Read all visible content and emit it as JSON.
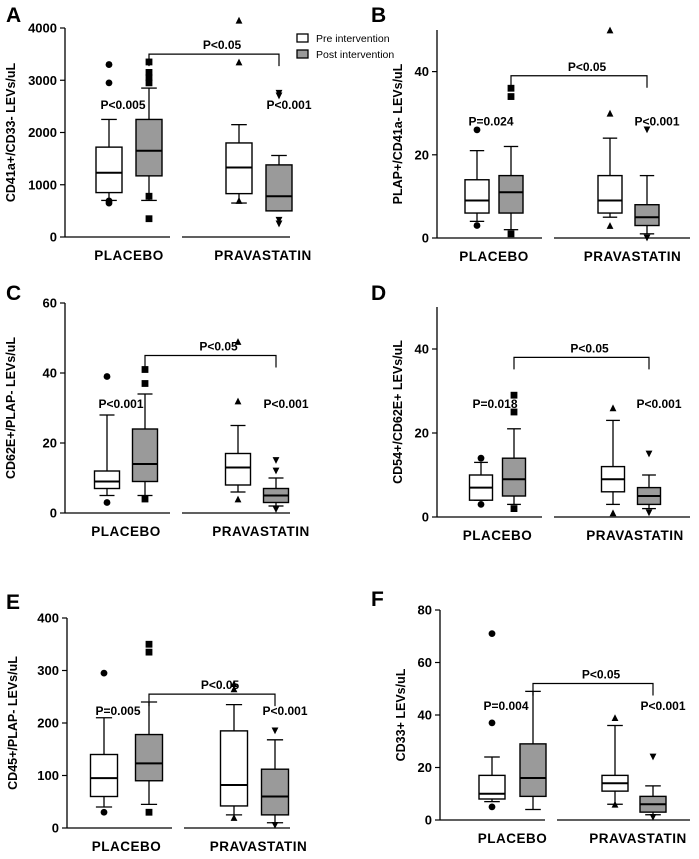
{
  "legend": {
    "pre_label": "Pre intervention",
    "post_label": "Post intervention",
    "pre_color": "#ffffff",
    "post_color": "#9a9a9a"
  },
  "chart_data": [
    {
      "panel": "A",
      "type": "box",
      "ylabel": "CD41a+/CD33-  LEVs/uL",
      "categories": [
        "PLACEBO",
        "PRAVASTATIN"
      ],
      "ylim": [
        0,
        4000
      ],
      "yticks": [
        0,
        1000,
        2000,
        3000,
        4000
      ],
      "boxes": [
        {
          "group": "PLACEBO",
          "series": "pre",
          "whisker_low": 700,
          "q1": 850,
          "median": 1230,
          "q3": 1720,
          "whisker_high": 2250,
          "outliers": [
            650,
            690,
            2950,
            3300
          ],
          "marker": "circle"
        },
        {
          "group": "PLACEBO",
          "series": "post",
          "whisker_low": 700,
          "q1": 1170,
          "median": 1650,
          "q3": 2250,
          "whisker_high": 2850,
          "outliers": [
            350,
            780,
            2950,
            3050,
            3150,
            3350
          ],
          "marker": "square"
        },
        {
          "group": "PRAVASTATIN",
          "series": "pre",
          "whisker_low": 650,
          "q1": 830,
          "median": 1330,
          "q3": 1800,
          "whisker_high": 2150,
          "outliers": [
            700,
            3350,
            4150
          ],
          "marker": "triangle-up"
        },
        {
          "group": "PRAVASTATIN",
          "series": "post",
          "whisker_low": 500,
          "q1": 500,
          "median": 780,
          "q3": 1380,
          "whisker_high": 1560,
          "outliers": [
            250,
            320,
            2700,
            2750
          ],
          "marker": "triangle-down"
        }
      ],
      "annotations": [
        {
          "text": "P<0.005",
          "anchor": "PLACEBO",
          "value": 2450
        },
        {
          "text": "P<0.001",
          "anchor": "PRAVASTATIN",
          "value": 2450
        },
        {
          "text": "P<0.05",
          "bracket": true,
          "from": "PLACEBO-post",
          "to": "PRAVASTATIN-post",
          "value": 3500
        }
      ]
    },
    {
      "panel": "B",
      "type": "box",
      "ylabel": "PLAP+/CD41a-  LEVs/uL",
      "categories": [
        "PLACEBO",
        "PRAVASTATIN"
      ],
      "ylim": [
        0,
        50
      ],
      "yticks": [
        0,
        20,
        40
      ],
      "boxes": [
        {
          "group": "PLACEBO",
          "series": "pre",
          "whisker_low": 4,
          "q1": 6,
          "median": 9,
          "q3": 14,
          "whisker_high": 21,
          "outliers": [
            3,
            26
          ],
          "marker": "circle"
        },
        {
          "group": "PLACEBO",
          "series": "post",
          "whisker_low": 2,
          "q1": 6,
          "median": 11,
          "q3": 15,
          "whisker_high": 22,
          "outliers": [
            1,
            34,
            36
          ],
          "marker": "square"
        },
        {
          "group": "PRAVASTATIN",
          "series": "pre",
          "whisker_low": 5,
          "q1": 6,
          "median": 9,
          "q3": 15,
          "whisker_high": 24,
          "outliers": [
            3,
            30,
            50
          ],
          "marker": "triangle-up"
        },
        {
          "group": "PRAVASTATIN",
          "series": "post",
          "whisker_low": 1,
          "q1": 3,
          "median": 5,
          "q3": 8,
          "whisker_high": 15,
          "outliers": [
            0,
            26
          ],
          "marker": "triangle-down"
        }
      ],
      "annotations": [
        {
          "text": "P=0.024",
          "anchor": "PLACEBO",
          "value": 27
        },
        {
          "text": "P<0.001",
          "anchor": "PRAVASTATIN",
          "value": 27
        },
        {
          "text": "P<0.05",
          "bracket": true,
          "from": "PLACEBO-post",
          "to": "PRAVASTATIN-post",
          "value": 39
        }
      ]
    },
    {
      "panel": "C",
      "type": "box",
      "ylabel": "CD62E+/PLAP-  LEVs/uL",
      "categories": [
        "PLACEBO",
        "PRAVASTATIN"
      ],
      "ylim": [
        0,
        60
      ],
      "yticks": [
        0,
        20,
        40,
        60
      ],
      "boxes": [
        {
          "group": "PLACEBO",
          "series": "pre",
          "whisker_low": 5,
          "q1": 7,
          "median": 9,
          "q3": 12,
          "whisker_high": 28,
          "outliers": [
            3,
            39
          ],
          "marker": "circle"
        },
        {
          "group": "PLACEBO",
          "series": "post",
          "whisker_low": 5,
          "q1": 9,
          "median": 14,
          "q3": 24,
          "whisker_high": 34,
          "outliers": [
            4,
            37,
            41
          ],
          "marker": "square"
        },
        {
          "group": "PRAVASTATIN",
          "series": "pre",
          "whisker_low": 6,
          "q1": 8,
          "median": 13,
          "q3": 17,
          "whisker_high": 25,
          "outliers": [
            4,
            32,
            49
          ],
          "marker": "triangle-up"
        },
        {
          "group": "PRAVASTATIN",
          "series": "post",
          "whisker_low": 2,
          "q1": 3,
          "median": 5,
          "q3": 7,
          "whisker_high": 10,
          "outliers": [
            1,
            12,
            15
          ],
          "marker": "triangle-down"
        }
      ],
      "annotations": [
        {
          "text": "P<0.001",
          "anchor": "PLACEBO",
          "value": 30
        },
        {
          "text": "P<0.001",
          "anchor": "PRAVASTATIN",
          "value": 30
        },
        {
          "text": "P<0.05",
          "bracket": true,
          "from": "PLACEBO-post",
          "to": "PRAVASTATIN-post",
          "value": 45
        }
      ]
    },
    {
      "panel": "D",
      "type": "box",
      "ylabel": "CD54+/CD62E+  LEVs/uL",
      "categories": [
        "PLACEBO",
        "PRAVASTATIN"
      ],
      "ylim": [
        0,
        50
      ],
      "yticks": [
        0,
        20,
        40
      ],
      "boxes": [
        {
          "group": "PLACEBO",
          "series": "pre",
          "whisker_low": 4,
          "q1": 4,
          "median": 7,
          "q3": 10,
          "whisker_high": 13,
          "outliers": [
            3,
            14
          ],
          "marker": "circle"
        },
        {
          "group": "PLACEBO",
          "series": "post",
          "whisker_low": 3,
          "q1": 5,
          "median": 9,
          "q3": 14,
          "whisker_high": 21,
          "outliers": [
            2,
            25,
            29
          ],
          "marker": "square"
        },
        {
          "group": "PRAVASTATIN",
          "series": "pre",
          "whisker_low": 3,
          "q1": 6,
          "median": 9,
          "q3": 12,
          "whisker_high": 23,
          "outliers": [
            1,
            26
          ],
          "marker": "triangle-up"
        },
        {
          "group": "PRAVASTATIN",
          "series": "post",
          "whisker_low": 2,
          "q1": 3,
          "median": 5,
          "q3": 7,
          "whisker_high": 10,
          "outliers": [
            1,
            15
          ],
          "marker": "triangle-down"
        }
      ],
      "annotations": [
        {
          "text": "P=0.018",
          "anchor": "PLACEBO",
          "value": 26
        },
        {
          "text": "P<0.001",
          "anchor": "PRAVASTATIN",
          "value": 26
        },
        {
          "text": "P<0.05",
          "bracket": true,
          "from": "PLACEBO-post",
          "to": "PRAVASTATIN-post",
          "value": 38
        }
      ]
    },
    {
      "panel": "E",
      "type": "box",
      "ylabel": "CD45+/PLAP-  LEVs/uL",
      "categories": [
        "PLACEBO",
        "PRAVASTATIN"
      ],
      "ylim": [
        0,
        400
      ],
      "yticks": [
        0,
        100,
        200,
        300,
        400
      ],
      "boxes": [
        {
          "group": "PLACEBO",
          "series": "pre",
          "whisker_low": 40,
          "q1": 60,
          "median": 95,
          "q3": 140,
          "whisker_high": 210,
          "outliers": [
            30,
            295
          ],
          "marker": "circle"
        },
        {
          "group": "PLACEBO",
          "series": "post",
          "whisker_low": 45,
          "q1": 90,
          "median": 123,
          "q3": 178,
          "whisker_high": 240,
          "outliers": [
            30,
            335,
            350
          ],
          "marker": "square"
        },
        {
          "group": "PRAVASTATIN",
          "series": "pre",
          "whisker_low": 25,
          "q1": 42,
          "median": 82,
          "q3": 185,
          "whisker_high": 235,
          "outliers": [
            20,
            265,
            275
          ],
          "marker": "triangle-up"
        },
        {
          "group": "PRAVASTATIN",
          "series": "post",
          "whisker_low": 10,
          "q1": 25,
          "median": 60,
          "q3": 112,
          "whisker_high": 168,
          "outliers": [
            5,
            185
          ],
          "marker": "triangle-down"
        }
      ],
      "annotations": [
        {
          "text": "P=0.005",
          "anchor": "PLACEBO",
          "value": 215
        },
        {
          "text": "P<0.001",
          "anchor": "PRAVASTATIN",
          "value": 215
        },
        {
          "text": "P<0.05",
          "bracket": true,
          "from": "PLACEBO-post",
          "to": "PRAVASTATIN-post",
          "value": 255
        }
      ]
    },
    {
      "panel": "F",
      "type": "box",
      "ylabel": "CD33+  LEVs/uL",
      "categories": [
        "PLACEBO",
        "PRAVASTATIN"
      ],
      "ylim": [
        0,
        80
      ],
      "yticks": [
        0,
        20,
        40,
        60,
        80
      ],
      "boxes": [
        {
          "group": "PLACEBO",
          "series": "pre",
          "whisker_low": 7,
          "q1": 8,
          "median": 10,
          "q3": 17,
          "whisker_high": 24,
          "outliers": [
            5,
            37,
            71
          ],
          "marker": "circle"
        },
        {
          "group": "PLACEBO",
          "series": "post",
          "whisker_low": 4,
          "q1": 9,
          "median": 16,
          "q3": 29,
          "whisker_high": 49,
          "outliers": [],
          "marker": "square"
        },
        {
          "group": "PRAVASTATIN",
          "series": "pre",
          "whisker_low": 6,
          "q1": 11,
          "median": 14,
          "q3": 17,
          "whisker_high": 36,
          "outliers": [
            6,
            39
          ],
          "marker": "triangle-up"
        },
        {
          "group": "PRAVASTATIN",
          "series": "post",
          "whisker_low": 2,
          "q1": 3,
          "median": 6,
          "q3": 9,
          "whisker_high": 13,
          "outliers": [
            1,
            24
          ],
          "marker": "triangle-down"
        }
      ],
      "annotations": [
        {
          "text": "P=0.004",
          "anchor": "PLACEBO",
          "value": 42
        },
        {
          "text": "P<0.001",
          "anchor": "PRAVASTATIN",
          "value": 42
        },
        {
          "text": "P<0.05",
          "bracket": true,
          "from": "PLACEBO-post",
          "to": "PRAVASTATIN-post",
          "value": 52
        }
      ]
    }
  ]
}
